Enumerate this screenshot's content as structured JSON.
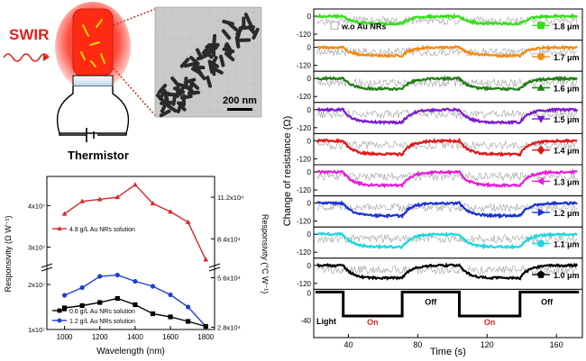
{
  "colors": {
    "glow": "#ff2a1a",
    "swir_label": "#e0201b",
    "dotted_line": "#c0392b",
    "bottle_outline": "#000000",
    "scale_bar": "#000000"
  },
  "schematic": {
    "swir_label": "SWIR",
    "device_label": "Thermistor",
    "scale_bar_label": "200 nm"
  },
  "chart_data": [
    {
      "type": "line",
      "panel": "responsivity",
      "title": "",
      "xlabel": "Wavelength (nm)",
      "ylabel_left": "Responsivity (Ω W⁻¹)",
      "ylabel_right": "Responsivity (°C W⁻¹)",
      "x_ticks": [
        "1000",
        "1200",
        "1400",
        "1600",
        "1800"
      ],
      "xlim": [
        900,
        1850
      ],
      "left_ticks": [
        "4x10⁷",
        "3x10⁷",
        "2x10⁷",
        "1x10⁷"
      ],
      "right_ticks": [
        "11.2x10⁴",
        "8.4x10⁴",
        "5.6x10⁴",
        "2.8x10⁴"
      ],
      "axis_break": true,
      "legend_placement": "bottom-left",
      "series": [
        {
          "name": "4.8 g/L Au NRs solution",
          "color": "#d62728",
          "marker": "triangle",
          "x": [
            1000,
            1100,
            1200,
            1300,
            1400,
            1500,
            1600,
            1700,
            1800
          ],
          "y": [
            38000000,
            41000000,
            41500000,
            42000000,
            45000000,
            40500000,
            38500000,
            36000000,
            27000000
          ]
        },
        {
          "name": "1.2 g/L Au NRs solution",
          "color": "#1f3fd1",
          "marker": "circle",
          "x": [
            1000,
            1100,
            1200,
            1300,
            1400,
            1500,
            1600,
            1700,
            1800
          ],
          "y": [
            17600000,
            19300000,
            21800000,
            22100000,
            20700000,
            19600000,
            17700000,
            15000000,
            10700000
          ]
        },
        {
          "name": "0.6 g/L Au NRs solution",
          "color": "#000000",
          "marker": "square",
          "x": [
            1000,
            1100,
            1200,
            1300,
            1400,
            1500,
            1600,
            1700,
            1800
          ],
          "y": [
            14800000,
            15300000,
            16000000,
            16900000,
            15500000,
            13500000,
            12800000,
            11800000,
            10700000
          ]
        }
      ]
    },
    {
      "type": "line",
      "panel": "time_response",
      "title": "",
      "xlabel": "Time (s)",
      "ylabel": "Change of resistance (Ω)",
      "x_ticks": [
        "40",
        "80",
        "120",
        "160"
      ],
      "xlim": [
        20,
        175
      ],
      "panel_y_ticks": [
        "0",
        "-120"
      ],
      "reference_legend": "w.o Au NRs",
      "reference_color": "#a8a8a8",
      "light_cycles": [
        {
          "label": "On",
          "start": 37,
          "end": 71
        },
        {
          "label": "Off",
          "start": 71,
          "end": 104
        },
        {
          "label": "On",
          "start": 104,
          "end": 139
        },
        {
          "label": "Off",
          "start": 139,
          "end": 170
        }
      ],
      "light_label": "Light",
      "light_axis_ticks": [
        "0",
        "-40"
      ],
      "series": [
        {
          "name": "1.8 μm",
          "color": "#33e016",
          "marker": "square",
          "drop": -50
        },
        {
          "name": "1.7 μm",
          "color": "#f28a12",
          "marker": "circle",
          "drop": -55
        },
        {
          "name": "1.6 μm",
          "color": "#1e7d14",
          "marker": "triangle",
          "drop": -70
        },
        {
          "name": "1.5 μm",
          "color": "#7b19d1",
          "marker": "down-triangle",
          "drop": -85
        },
        {
          "name": "1.4 μm",
          "color": "#e01616",
          "marker": "diamond",
          "drop": -90
        },
        {
          "name": "1.3 μm",
          "color": "#e81ad8",
          "marker": "left-triangle",
          "drop": -90
        },
        {
          "name": "1.2 μm",
          "color": "#1a2fd8",
          "marker": "right-triangle",
          "drop": -85
        },
        {
          "name": "1.1 μm",
          "color": "#1ad7e0",
          "marker": "circle",
          "drop": -85
        },
        {
          "name": "1.0 μm",
          "color": "#000000",
          "marker": "pentagon",
          "drop": -85
        }
      ]
    }
  ]
}
